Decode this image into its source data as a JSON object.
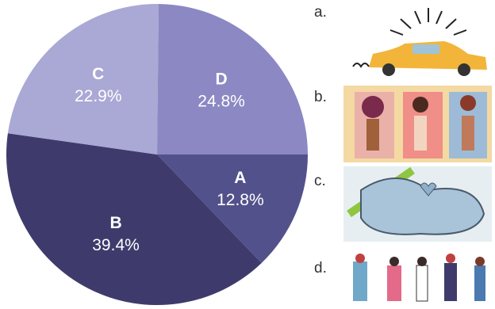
{
  "chart_data": {
    "type": "pie",
    "categories": [
      "A",
      "B",
      "C",
      "D"
    ],
    "values": [
      12.8,
      39.4,
      22.9,
      24.8
    ],
    "value_labels": [
      "12.8%",
      "39.4%",
      "22.9%",
      "24.8%"
    ],
    "colors": [
      "#53518b",
      "#3e3b6c",
      "#aaa8d4",
      "#8b88c3"
    ]
  },
  "images": [
    {
      "label": "a."
    },
    {
      "label": "b."
    },
    {
      "label": "c."
    },
    {
      "label": "d."
    }
  ]
}
